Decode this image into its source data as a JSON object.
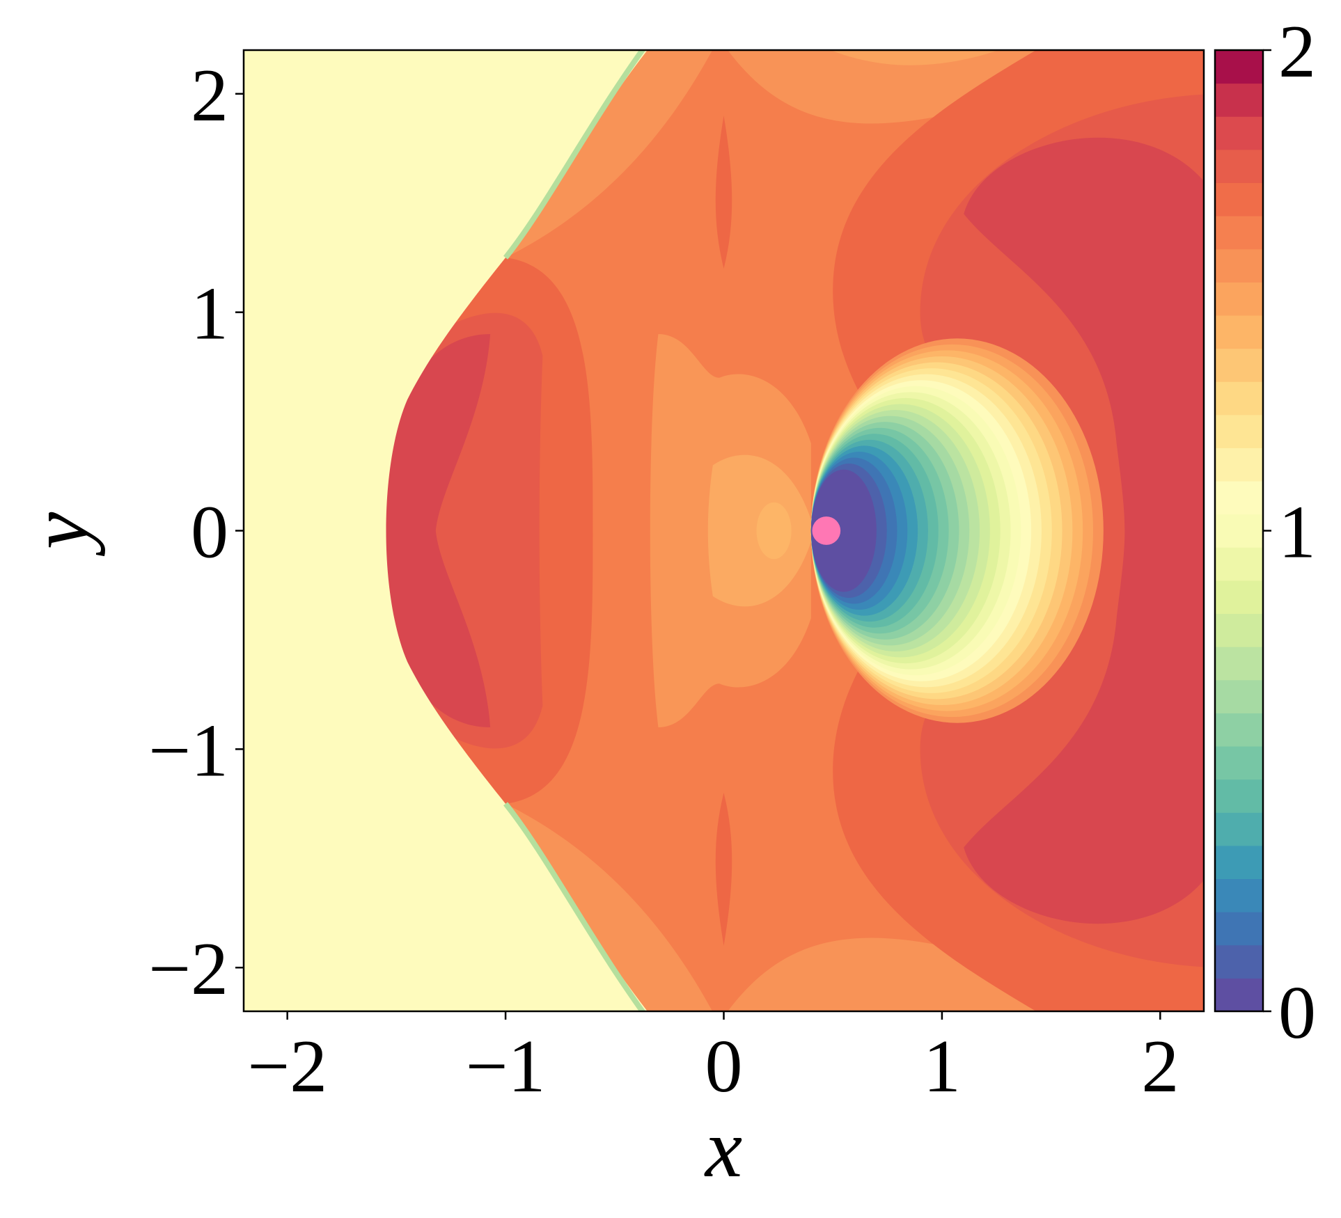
{
  "chart_data": {
    "type": "contour",
    "xlabel": "x",
    "ylabel": "y",
    "xlim": [
      -2.2,
      2.2
    ],
    "ylim": [
      -2.2,
      2.2
    ],
    "xticks": [
      {
        "value": -2,
        "label": "−2"
      },
      {
        "value": -1,
        "label": "−1"
      },
      0,
      1,
      2
    ],
    "yticks": [
      {
        "value": -2,
        "label": "−2"
      },
      {
        "value": -1,
        "label": "−1"
      },
      0,
      1,
      2
    ],
    "colorbar": {
      "lim": [
        0,
        2
      ],
      "ticks": [
        0,
        1,
        2
      ],
      "colors": [
        "#5e4fa2",
        "#4d62ab",
        "#3f75b4",
        "#3a88b8",
        "#3d9bb5",
        "#4fadad",
        "#62bba6",
        "#77c6a5",
        "#8ed0a4",
        "#a6daa3",
        "#bbe3a1",
        "#cfeb9d",
        "#e0f29c",
        "#eef7a8",
        "#f9fbb5",
        "#fefbbc",
        "#fef1a9",
        "#fee594",
        "#fed884",
        "#fdc675",
        "#fdb567",
        "#fba45e",
        "#f89257",
        "#f58050",
        "#f06d49",
        "#e75d4b",
        "#dc4a4e",
        "#c8314c",
        "#a8104a"
      ]
    }
  }
}
